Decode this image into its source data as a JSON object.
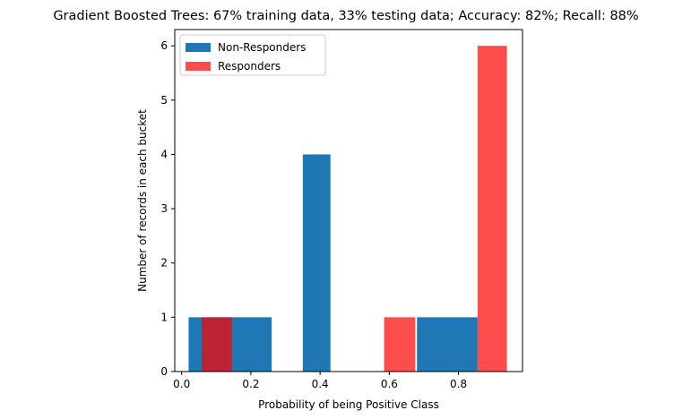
{
  "chart_data": {
    "type": "bar",
    "subtype": "histogram",
    "title": "Gradient Boosted Trees: 67% training data, 33% testing data; Accuracy: 82%; Recall: 88%",
    "xlabel": "Probability of being Positive Class",
    "ylabel": "Number of records in each bucket",
    "xlim": [
      -0.02,
      0.985
    ],
    "ylim": [
      0,
      6.3
    ],
    "xticks": [
      0.0,
      0.2,
      0.4,
      0.6,
      0.8
    ],
    "xtick_labels": [
      "0.0",
      "0.2",
      "0.4",
      "0.6",
      "0.8"
    ],
    "yticks": [
      0,
      1,
      2,
      3,
      4,
      5,
      6
    ],
    "ytick_labels": [
      "0",
      "1",
      "2",
      "3",
      "4",
      "5",
      "6"
    ],
    "grid": false,
    "legend_position": "top-left",
    "series": [
      {
        "name": "Non-Responders",
        "color": "#1f77b4",
        "alpha": 1.0,
        "bars": [
          {
            "x0": 0.02,
            "x1": 0.14,
            "value": 1
          },
          {
            "x0": 0.14,
            "x1": 0.26,
            "value": 1
          },
          {
            "x0": 0.35,
            "x1": 0.43,
            "value": 4
          },
          {
            "x0": 0.68,
            "x1": 0.855,
            "value": 1
          }
        ]
      },
      {
        "name": "Responders",
        "color": "#ff0000",
        "alpha": 0.7,
        "bars": [
          {
            "x0": 0.058,
            "x1": 0.145,
            "value": 1
          },
          {
            "x0": 0.585,
            "x1": 0.675,
            "value": 1
          },
          {
            "x0": 0.855,
            "x1": 0.94,
            "value": 6
          }
        ]
      }
    ]
  }
}
